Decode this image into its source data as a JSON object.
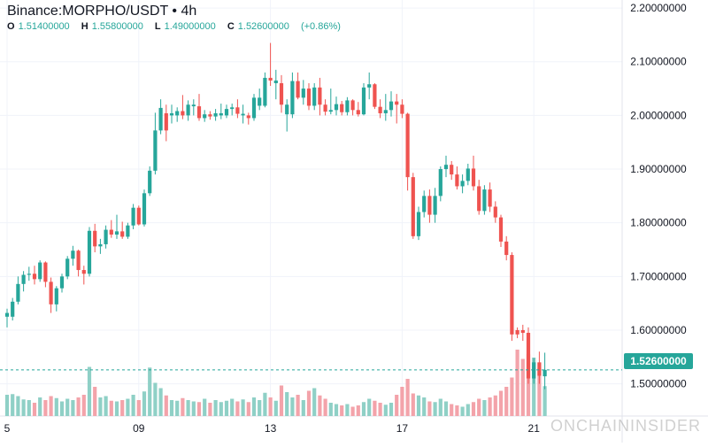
{
  "legend": {
    "title": "Binance:MORPHO/USDT • 4h",
    "open_key": "O",
    "open": "1.51400000",
    "high_key": "H",
    "high": "1.55800000",
    "low_key": "L",
    "low": "1.49000000",
    "close_key": "C",
    "close": "1.52600000",
    "change": "(+0.86%)"
  },
  "watermark": "ONCHAININSIDER",
  "current_price_label": "1.52600000",
  "colors": {
    "up": "#26a69a",
    "down": "#ef5350",
    "up_volume": "#8fd0c6",
    "down_volume": "#f3a3aa",
    "grid": "#f0f3fa",
    "text": "#131722"
  },
  "chart_data": {
    "type": "candlestick",
    "interval": "4h",
    "y_ticks": [
      "1.50000000",
      "1.60000000",
      "1.70000000",
      "1.80000000",
      "1.90000000",
      "2.00000000",
      "2.10000000",
      "2.20000000"
    ],
    "x_ticks": [
      {
        "label": "5",
        "index": 0
      },
      {
        "label": "09",
        "index": 24
      },
      {
        "label": "13",
        "index": 48
      },
      {
        "label": "17",
        "index": 72
      },
      {
        "label": "21",
        "index": 96
      }
    ],
    "ylim": [
      1.44,
      2.215
    ],
    "current_price": 1.526,
    "grid": true,
    "candles": [
      [
        1.632,
        1.64,
        1.605,
        1.625,
        "up",
        0.32
      ],
      [
        1.625,
        1.66,
        1.618,
        1.653,
        "up",
        0.33
      ],
      [
        1.653,
        1.7,
        1.648,
        1.686,
        "up",
        0.3
      ],
      [
        1.686,
        1.71,
        1.672,
        1.703,
        "up",
        0.25
      ],
      [
        1.703,
        1.718,
        1.692,
        1.705,
        "up",
        0.24
      ],
      [
        1.705,
        1.72,
        1.685,
        1.695,
        "down",
        0.2
      ],
      [
        1.695,
        1.73,
        1.69,
        1.726,
        "up",
        0.28
      ],
      [
        1.726,
        1.728,
        1.68,
        1.69,
        "down",
        0.24
      ],
      [
        1.69,
        1.698,
        1.632,
        1.648,
        "down",
        0.3
      ],
      [
        1.648,
        1.682,
        1.635,
        1.678,
        "up",
        0.27
      ],
      [
        1.678,
        1.705,
        1.67,
        1.7,
        "up",
        0.22
      ],
      [
        1.7,
        1.738,
        1.695,
        1.733,
        "up",
        0.26
      ],
      [
        1.733,
        1.757,
        1.72,
        1.748,
        "up",
        0.24
      ],
      [
        1.748,
        1.75,
        1.7,
        1.712,
        "down",
        0.28
      ],
      [
        1.712,
        1.72,
        1.685,
        1.705,
        "down",
        0.32
      ],
      [
        1.705,
        1.792,
        1.7,
        1.785,
        "up",
        0.74
      ],
      [
        1.785,
        1.798,
        1.745,
        1.756,
        "down",
        0.44
      ],
      [
        1.756,
        1.77,
        1.742,
        1.76,
        "up",
        0.28
      ],
      [
        1.76,
        1.795,
        1.752,
        1.787,
        "up",
        0.3
      ],
      [
        1.787,
        1.805,
        1.772,
        1.778,
        "down",
        0.23
      ],
      [
        1.778,
        1.815,
        1.77,
        1.784,
        "up",
        0.22
      ],
      [
        1.784,
        1.802,
        1.77,
        1.774,
        "down",
        0.24
      ],
      [
        1.774,
        1.8,
        1.77,
        1.795,
        "up",
        0.26
      ],
      [
        1.795,
        1.835,
        1.788,
        1.828,
        "up",
        0.32
      ],
      [
        1.828,
        1.832,
        1.795,
        1.797,
        "down",
        0.24
      ],
      [
        1.797,
        1.862,
        1.793,
        1.855,
        "up",
        0.37
      ],
      [
        1.855,
        1.905,
        1.85,
        1.897,
        "up",
        0.73
      ],
      [
        1.897,
        2.005,
        1.89,
        1.972,
        "up",
        0.5
      ],
      [
        1.972,
        2.03,
        1.965,
        2.014,
        "up",
        0.42
      ],
      [
        1.972,
        2.02,
        1.952,
        2.004,
        "down",
        0.31
      ],
      [
        2.004,
        2.02,
        1.985,
        2.0,
        "up",
        0.24
      ],
      [
        2.0,
        2.015,
        1.988,
        2.008,
        "up",
        0.23
      ],
      [
        2.008,
        2.038,
        1.993,
        2.0,
        "down",
        0.27
      ],
      [
        2.0,
        2.028,
        1.99,
        2.02,
        "up",
        0.24
      ],
      [
        2.02,
        2.03,
        2.0,
        2.017,
        "up",
        0.22
      ],
      [
        2.017,
        2.04,
        1.99,
        1.995,
        "down",
        0.21
      ],
      [
        1.995,
        2.01,
        1.988,
        2.002,
        "up",
        0.26
      ],
      [
        2.002,
        2.008,
        1.992,
        1.998,
        "down",
        0.2
      ],
      [
        1.998,
        2.012,
        1.99,
        2.004,
        "up",
        0.24
      ],
      [
        2.004,
        2.022,
        1.993,
        2.0,
        "up",
        0.21
      ],
      [
        2.0,
        2.02,
        1.995,
        2.012,
        "up",
        0.23
      ],
      [
        2.012,
        2.022,
        2.0,
        2.015,
        "up",
        0.26
      ],
      [
        2.015,
        2.03,
        1.995,
        2.003,
        "down",
        0.22
      ],
      [
        2.003,
        2.02,
        1.985,
        2.0,
        "up",
        0.25
      ],
      [
        2.0,
        2.005,
        1.983,
        1.995,
        "down",
        0.21
      ],
      [
        1.995,
        2.04,
        1.99,
        2.033,
        "up",
        0.28
      ],
      [
        2.033,
        2.05,
        2.01,
        2.018,
        "up",
        0.24
      ],
      [
        2.018,
        2.08,
        2.015,
        2.07,
        "up",
        0.35
      ],
      [
        2.07,
        2.135,
        2.055,
        2.065,
        "down",
        0.28
      ],
      [
        2.065,
        2.085,
        2.03,
        2.06,
        "up",
        0.23
      ],
      [
        2.06,
        2.075,
        2.005,
        2.02,
        "down",
        0.46
      ],
      [
        2.02,
        2.03,
        1.97,
        2.002,
        "up",
        0.36
      ],
      [
        2.002,
        2.08,
        1.995,
        2.064,
        "up",
        0.28
      ],
      [
        2.064,
        2.08,
        2.03,
        2.033,
        "down",
        0.32
      ],
      [
        2.033,
        2.066,
        2.02,
        2.05,
        "up",
        0.24
      ],
      [
        2.05,
        2.06,
        2.01,
        2.018,
        "down",
        0.38
      ],
      [
        2.018,
        2.06,
        2.01,
        2.052,
        "up",
        0.42
      ],
      [
        2.052,
        2.07,
        2.0,
        2.02,
        "down",
        0.31
      ],
      [
        2.02,
        2.03,
        2.0,
        2.007,
        "down",
        0.26
      ],
      [
        2.007,
        2.05,
        2.002,
        2.01,
        "up",
        0.2
      ],
      [
        2.01,
        2.035,
        2.0,
        2.021,
        "up",
        0.18
      ],
      [
        2.021,
        2.027,
        2.0,
        2.006,
        "down",
        0.16
      ],
      [
        2.006,
        2.034,
        2.0,
        2.028,
        "up",
        0.18
      ],
      [
        2.028,
        2.03,
        2.0,
        2.01,
        "down",
        0.14
      ],
      [
        2.01,
        2.025,
        1.998,
        2.002,
        "down",
        0.16
      ],
      [
        2.002,
        2.06,
        2.0,
        2.052,
        "up",
        0.21
      ],
      [
        2.052,
        2.08,
        2.03,
        2.058,
        "up",
        0.26
      ],
      [
        2.058,
        2.06,
        2.012,
        2.016,
        "down",
        0.23
      ],
      [
        2.016,
        2.03,
        1.995,
        2.004,
        "down",
        0.2
      ],
      [
        2.004,
        2.04,
        1.99,
        2.01,
        "up",
        0.17
      ],
      [
        2.01,
        2.045,
        1.998,
        2.026,
        "up",
        0.2
      ],
      [
        2.026,
        2.04,
        1.985,
        2.02,
        "down",
        0.32
      ],
      [
        2.02,
        2.03,
        1.995,
        2.003,
        "down",
        0.44
      ],
      [
        2.003,
        2.005,
        1.86,
        1.885,
        "down",
        0.56
      ],
      [
        1.885,
        1.893,
        1.77,
        1.775,
        "down",
        0.34
      ],
      [
        1.775,
        1.83,
        1.768,
        1.82,
        "up",
        0.31
      ],
      [
        1.82,
        1.86,
        1.81,
        1.85,
        "up",
        0.28
      ],
      [
        1.85,
        1.862,
        1.8,
        1.815,
        "down",
        0.22
      ],
      [
        1.815,
        1.865,
        1.8,
        1.85,
        "up",
        0.21
      ],
      [
        1.85,
        1.905,
        1.84,
        1.9,
        "up",
        0.26
      ],
      [
        1.9,
        1.925,
        1.885,
        1.908,
        "up",
        0.22
      ],
      [
        1.908,
        1.915,
        1.88,
        1.89,
        "down",
        0.18
      ],
      [
        1.89,
        1.905,
        1.862,
        1.868,
        "down",
        0.16
      ],
      [
        1.868,
        1.89,
        1.855,
        1.878,
        "up",
        0.14
      ],
      [
        1.878,
        1.91,
        1.87,
        1.901,
        "up",
        0.18
      ],
      [
        1.901,
        1.925,
        1.86,
        1.868,
        "down",
        0.21
      ],
      [
        1.868,
        1.88,
        1.815,
        1.822,
        "down",
        0.26
      ],
      [
        1.822,
        1.87,
        1.815,
        1.862,
        "up",
        0.24
      ],
      [
        1.862,
        1.875,
        1.82,
        1.83,
        "down",
        0.28
      ],
      [
        1.83,
        1.84,
        1.8,
        1.81,
        "down",
        0.31
      ],
      [
        1.81,
        1.815,
        1.755,
        1.765,
        "down",
        0.38
      ],
      [
        1.765,
        1.775,
        1.73,
        1.74,
        "down",
        0.44
      ],
      [
        1.74,
        1.745,
        1.58,
        1.592,
        "down",
        0.58
      ],
      [
        1.592,
        1.605,
        1.585,
        1.6,
        "down",
        1.0
      ],
      [
        1.6,
        1.61,
        1.58,
        1.595,
        "down",
        0.86
      ],
      [
        1.595,
        1.605,
        1.5,
        1.51,
        "down",
        0.93
      ],
      [
        1.51,
        1.548,
        1.5,
        1.54,
        "up",
        0.88
      ],
      [
        1.54,
        1.56,
        1.5,
        1.515,
        "down",
        0.72
      ],
      [
        1.514,
        1.558,
        1.49,
        1.526,
        "up",
        0.45
      ]
    ]
  }
}
